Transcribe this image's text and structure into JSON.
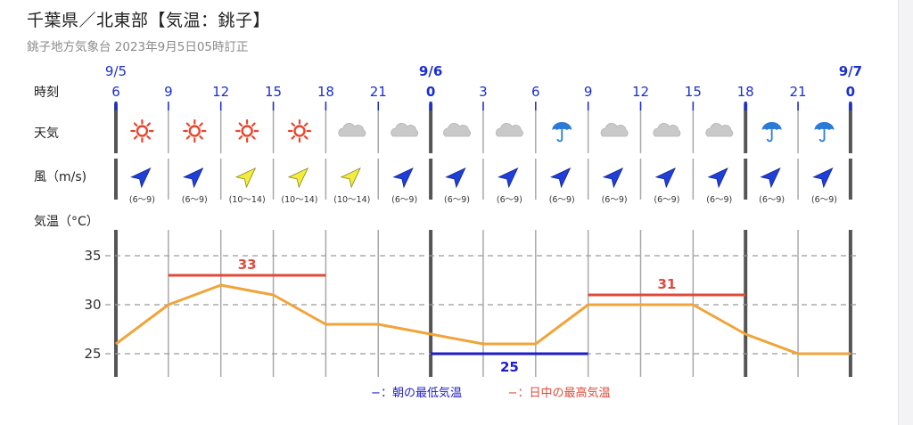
{
  "header": {
    "title": "千葉県／北東部【気温：銚子】",
    "subtitle": "銚子地方気象台 2023年9月5日05時訂正"
  },
  "rows": {
    "time": "時刻",
    "weather": "天気",
    "wind": "風（m/s)",
    "temp": "気温（°C）"
  },
  "days": [
    "9/5",
    "9/6",
    "9/7"
  ],
  "hours": [
    "6",
    "9",
    "12",
    "15",
    "18",
    "21",
    "0",
    "3",
    "6",
    "9",
    "12",
    "15",
    "18",
    "21",
    "0"
  ],
  "weather": [
    "sun",
    "sun",
    "sun",
    "sun",
    "cloud",
    "cloud",
    "cloud",
    "cloud",
    "umbrella",
    "cloud",
    "cloud",
    "cloud",
    "umbrella",
    "umbrella"
  ],
  "wind": {
    "arrows": [
      "blue",
      "blue",
      "yellow",
      "yellow",
      "yellow",
      "blue",
      "blue",
      "blue",
      "blue",
      "blue",
      "blue",
      "blue",
      "blue",
      "blue"
    ],
    "labels": [
      "(6〜9)",
      "(6〜9)",
      "(10〜14)",
      "(10〜14)",
      "(10〜14)",
      "(6〜9)",
      "(6〜9)",
      "(6〜9)",
      "(6〜9)",
      "(6〜9)",
      "(6〜9)",
      "(6〜9)",
      "(6〜9)",
      "(6〜9)"
    ]
  },
  "colors": {
    "blue_text": "#1a2fd1",
    "temp_line": "#f0a43a",
    "max_line": "#e04a3a",
    "min_line": "#1d1dc9",
    "arrow_blue": "#1f3fd8",
    "arrow_yellow": "#f2ec3c",
    "sun": "#e8452c",
    "cloud": "#c9c9c9",
    "umbrella": "#2a7ad8"
  },
  "chart_data": {
    "type": "line",
    "x": [
      "6",
      "9",
      "12",
      "15",
      "18",
      "21",
      "0",
      "3",
      "6",
      "9",
      "12",
      "15",
      "18",
      "21",
      "0"
    ],
    "series": [
      {
        "values": [
          26,
          30,
          32,
          31,
          28,
          28,
          27,
          26,
          26,
          30,
          30,
          30,
          27,
          25,
          25
        ]
      }
    ],
    "ylim": [
      22,
      37
    ],
    "yticks": [
      "25",
      "30",
      "35"
    ],
    "max_lines": [
      {
        "label": "33",
        "value": 33,
        "from": 1,
        "to": 4
      },
      {
        "label": "31",
        "value": 31,
        "from": 9,
        "to": 12
      }
    ],
    "min_lines": [
      {
        "label": "25",
        "value": 25,
        "from": 6,
        "to": 9
      }
    ],
    "legend": {
      "min": "−：朝の最低気温",
      "max": "−：日中の最高気温"
    }
  }
}
